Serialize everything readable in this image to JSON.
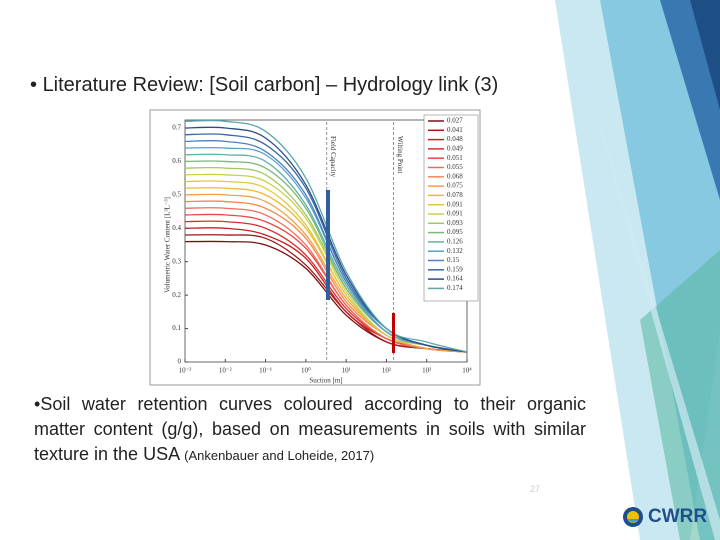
{
  "slide": {
    "title": "Literature Review: [Soil carbon] – Hydrology link (3)",
    "caption_lead": "Soil water retention curves",
    "caption_text": "coloured according to their organic matter content (g/g), based on measurements in soils with similar texture in the USA",
    "citation": "(Ankenbauer and Loheide, 2017)",
    "page_number": "27",
    "logo": "CWRR"
  },
  "chart_data": {
    "type": "line",
    "xscale": "log",
    "xlabel": "Suction [m]",
    "ylabel": "Volumetric Water Content [L³L⁻³]",
    "x": [
      0.001,
      0.01,
      0.1,
      1,
      10,
      100,
      1000,
      10000
    ],
    "xlim": [
      0.001,
      10000
    ],
    "xticks": [
      {
        "value": 0.001,
        "label": "10⁻³"
      },
      {
        "value": 0.01,
        "label": "10⁻²"
      },
      {
        "value": 0.1,
        "label": "10⁻¹"
      },
      {
        "value": 1,
        "label": "10⁰"
      },
      {
        "value": 10,
        "label": "10¹"
      },
      {
        "value": 100,
        "label": "10²"
      },
      {
        "value": 1000,
        "label": "10³"
      },
      {
        "value": 10000,
        "label": "10⁴"
      }
    ],
    "ylim": [
      0,
      0.7
    ],
    "yticks": [
      0,
      0.1,
      0.2,
      0.3,
      0.4,
      0.5,
      0.6,
      0.7
    ],
    "annotations": [
      {
        "text": "Field Capacity",
        "x": 3.3
      },
      {
        "text": "Wilting Point",
        "x": 150
      }
    ],
    "legend": "upper right",
    "series": [
      {
        "name": "0.027",
        "color": "#7a1010",
        "values": [
          0.36,
          0.36,
          0.35,
          0.28,
          0.14,
          0.06,
          0.04,
          0.03
        ]
      },
      {
        "name": "0.041",
        "color": "#a01818",
        "values": [
          0.38,
          0.38,
          0.37,
          0.29,
          0.15,
          0.06,
          0.04,
          0.03
        ]
      },
      {
        "name": "0.048",
        "color": "#c42020",
        "values": [
          0.4,
          0.4,
          0.38,
          0.31,
          0.15,
          0.07,
          0.04,
          0.03
        ]
      },
      {
        "name": "0.049",
        "color": "#d83030",
        "values": [
          0.42,
          0.42,
          0.4,
          0.32,
          0.16,
          0.07,
          0.04,
          0.03
        ]
      },
      {
        "name": "0.051",
        "color": "#e84848",
        "values": [
          0.44,
          0.44,
          0.42,
          0.34,
          0.17,
          0.07,
          0.04,
          0.03
        ]
      },
      {
        "name": "0.055",
        "color": "#f06a5a",
        "values": [
          0.46,
          0.46,
          0.44,
          0.35,
          0.17,
          0.07,
          0.04,
          0.03
        ]
      },
      {
        "name": "0.068",
        "color": "#f48a50",
        "values": [
          0.48,
          0.48,
          0.46,
          0.37,
          0.18,
          0.08,
          0.04,
          0.03
        ]
      },
      {
        "name": "0.075",
        "color": "#f5a040",
        "values": [
          0.5,
          0.5,
          0.48,
          0.38,
          0.19,
          0.08,
          0.04,
          0.03
        ]
      },
      {
        "name": "0.078",
        "color": "#f0b838",
        "values": [
          0.52,
          0.52,
          0.5,
          0.4,
          0.2,
          0.08,
          0.05,
          0.03
        ]
      },
      {
        "name": "0.091",
        "color": "#e0c840",
        "values": [
          0.54,
          0.54,
          0.52,
          0.41,
          0.2,
          0.08,
          0.05,
          0.03
        ]
      },
      {
        "name": "0.091",
        "color": "#c8d050",
        "values": [
          0.56,
          0.56,
          0.54,
          0.43,
          0.21,
          0.08,
          0.05,
          0.03
        ]
      },
      {
        "name": "0.093",
        "color": "#a0c860",
        "values": [
          0.58,
          0.58,
          0.56,
          0.44,
          0.22,
          0.09,
          0.05,
          0.03
        ]
      },
      {
        "name": "0.095",
        "color": "#78b878",
        "values": [
          0.6,
          0.6,
          0.58,
          0.46,
          0.22,
          0.09,
          0.05,
          0.03
        ]
      },
      {
        "name": "0.126",
        "color": "#60b0a8",
        "values": [
          0.62,
          0.62,
          0.6,
          0.47,
          0.23,
          0.09,
          0.05,
          0.03
        ]
      },
      {
        "name": "0.132",
        "color": "#58a0d0",
        "values": [
          0.64,
          0.64,
          0.62,
          0.49,
          0.24,
          0.09,
          0.05,
          0.03
        ]
      },
      {
        "name": "0.15",
        "color": "#4a84c4",
        "values": [
          0.66,
          0.66,
          0.63,
          0.5,
          0.24,
          0.1,
          0.05,
          0.03
        ]
      },
      {
        "name": "0.159",
        "color": "#3a66a8",
        "values": [
          0.68,
          0.68,
          0.65,
          0.52,
          0.25,
          0.1,
          0.05,
          0.03
        ]
      },
      {
        "name": "0.164",
        "color": "#2a4c88",
        "values": [
          0.7,
          0.7,
          0.67,
          0.53,
          0.26,
          0.1,
          0.05,
          0.03
        ]
      },
      {
        "name": "0.174",
        "color": "#5aa8a8",
        "values": [
          0.72,
          0.72,
          0.69,
          0.55,
          0.27,
          0.1,
          0.06,
          0.03
        ]
      }
    ]
  }
}
